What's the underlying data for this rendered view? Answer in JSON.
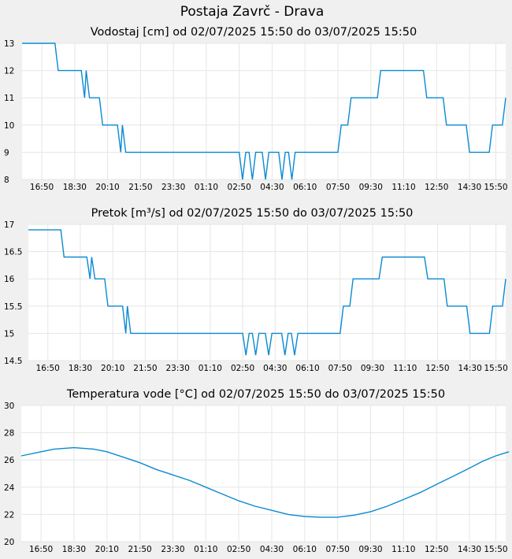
{
  "title": "Postaja Zavrč - Drava",
  "chart_data": [
    {
      "type": "line",
      "title": "Vodostaj [cm] od 02/07/2025 15:50 do 03/07/2025 15:50",
      "xlabel": "",
      "ylabel": "",
      "x_tick_labels": [
        "16:50",
        "18:30",
        "20:10",
        "21:50",
        "23:30",
        "01:10",
        "02:50",
        "04:30",
        "06:10",
        "07:50",
        "09:30",
        "11:10",
        "12:50",
        "14:30",
        "15:50"
      ],
      "y_tick_labels": [
        "8",
        "9",
        "10",
        "11",
        "12",
        "13"
      ],
      "ylim": [
        8,
        13
      ],
      "grid": true,
      "series": [
        {
          "points": [
            [
              "15:50",
              13
            ],
            [
              "16:50",
              13
            ],
            [
              "17:30",
              13
            ],
            [
              "17:40",
              12
            ],
            [
              "18:50",
              12
            ],
            [
              "19:00",
              11
            ],
            [
              "19:05",
              12
            ],
            [
              "19:15",
              11
            ],
            [
              "19:45",
              11
            ],
            [
              "19:55",
              10
            ],
            [
              "20:40",
              10
            ],
            [
              "20:50",
              9
            ],
            [
              "20:55",
              10
            ],
            [
              "21:05",
              9
            ],
            [
              "02:50",
              9
            ],
            [
              "03:00",
              8
            ],
            [
              "03:10",
              9
            ],
            [
              "03:20",
              9
            ],
            [
              "03:30",
              8
            ],
            [
              "03:40",
              9
            ],
            [
              "04:00",
              9
            ],
            [
              "04:10",
              8
            ],
            [
              "04:20",
              9
            ],
            [
              "04:50",
              9
            ],
            [
              "05:00",
              8
            ],
            [
              "05:10",
              9
            ],
            [
              "05:20",
              9
            ],
            [
              "05:30",
              8
            ],
            [
              "05:40",
              9
            ],
            [
              "07:50",
              9
            ],
            [
              "08:00",
              10
            ],
            [
              "08:20",
              10
            ],
            [
              "08:30",
              11
            ],
            [
              "09:50",
              11
            ],
            [
              "10:00",
              12
            ],
            [
              "12:10",
              12
            ],
            [
              "12:20",
              11
            ],
            [
              "13:10",
              11
            ],
            [
              "13:20",
              10
            ],
            [
              "14:20",
              10
            ],
            [
              "14:30",
              9
            ],
            [
              "15:30",
              9
            ],
            [
              "15:40",
              10
            ],
            [
              "16:10",
              10
            ],
            [
              "16:20",
              11
            ]
          ]
        }
      ]
    },
    {
      "type": "line",
      "title": "Pretok [m³/s] od 02/07/2025 15:50 do 03/07/2025 15:50",
      "xlabel": "",
      "ylabel": "",
      "x_tick_labels": [
        "16:50",
        "18:30",
        "20:10",
        "21:50",
        "23:30",
        "01:10",
        "02:50",
        "04:30",
        "06:10",
        "07:50",
        "09:30",
        "11:10",
        "12:50",
        "14:30",
        "15:50"
      ],
      "y_tick_labels": [
        "14.5",
        "15",
        "15.5",
        "16",
        "16.5",
        "17"
      ],
      "ylim": [
        14.5,
        17
      ],
      "grid": true,
      "series": [
        {
          "points": [
            [
              "15:50",
              16.9
            ],
            [
              "16:50",
              16.9
            ],
            [
              "17:30",
              16.9
            ],
            [
              "17:40",
              16.4
            ],
            [
              "18:50",
              16.4
            ],
            [
              "19:00",
              16.0
            ],
            [
              "19:05",
              16.4
            ],
            [
              "19:15",
              16.0
            ],
            [
              "19:45",
              16.0
            ],
            [
              "19:55",
              15.5
            ],
            [
              "20:40",
              15.5
            ],
            [
              "20:50",
              15.0
            ],
            [
              "20:55",
              15.5
            ],
            [
              "21:05",
              15.0
            ],
            [
              "02:50",
              15.0
            ],
            [
              "03:00",
              14.6
            ],
            [
              "03:10",
              15.0
            ],
            [
              "03:20",
              15.0
            ],
            [
              "03:30",
              14.6
            ],
            [
              "03:40",
              15.0
            ],
            [
              "04:00",
              15.0
            ],
            [
              "04:10",
              14.6
            ],
            [
              "04:20",
              15.0
            ],
            [
              "04:50",
              15.0
            ],
            [
              "05:00",
              14.6
            ],
            [
              "05:10",
              15.0
            ],
            [
              "05:20",
              15.0
            ],
            [
              "05:30",
              14.6
            ],
            [
              "05:40",
              15.0
            ],
            [
              "07:50",
              15.0
            ],
            [
              "08:00",
              15.5
            ],
            [
              "08:20",
              15.5
            ],
            [
              "08:30",
              16.0
            ],
            [
              "09:50",
              16.0
            ],
            [
              "10:00",
              16.4
            ],
            [
              "12:10",
              16.4
            ],
            [
              "12:20",
              16.0
            ],
            [
              "13:10",
              16.0
            ],
            [
              "13:20",
              15.5
            ],
            [
              "14:20",
              15.5
            ],
            [
              "14:30",
              15.0
            ],
            [
              "15:30",
              15.0
            ],
            [
              "15:40",
              15.5
            ],
            [
              "16:10",
              15.5
            ],
            [
              "16:20",
              16.0
            ]
          ]
        }
      ]
    },
    {
      "type": "line",
      "title": "Temperatura vode [°C] od 02/07/2025 15:50 do 03/07/2025 15:50",
      "xlabel": "",
      "ylabel": "",
      "x_tick_labels": [
        "16:50",
        "18:30",
        "20:10",
        "21:50",
        "23:30",
        "01:10",
        "02:50",
        "04:30",
        "06:10",
        "07:50",
        "09:30",
        "11:10",
        "12:50",
        "14:30",
        "15:50"
      ],
      "y_tick_labels": [
        "20",
        "22",
        "24",
        "26",
        "28",
        "30"
      ],
      "ylim": [
        20,
        30
      ],
      "grid": true,
      "series": [
        {
          "points": [
            [
              "15:50",
              26.3
            ],
            [
              "16:50",
              26.6
            ],
            [
              "17:30",
              26.8
            ],
            [
              "18:30",
              26.9
            ],
            [
              "19:30",
              26.8
            ],
            [
              "20:10",
              26.6
            ],
            [
              "21:00",
              26.2
            ],
            [
              "21:50",
              25.8
            ],
            [
              "22:40",
              25.3
            ],
            [
              "23:30",
              24.9
            ],
            [
              "00:20",
              24.5
            ],
            [
              "01:10",
              24.0
            ],
            [
              "02:00",
              23.5
            ],
            [
              "02:50",
              23.0
            ],
            [
              "03:40",
              22.6
            ],
            [
              "04:30",
              22.3
            ],
            [
              "05:20",
              22.0
            ],
            [
              "06:10",
              21.85
            ],
            [
              "07:00",
              21.8
            ],
            [
              "07:50",
              21.8
            ],
            [
              "08:40",
              21.95
            ],
            [
              "09:30",
              22.2
            ],
            [
              "10:20",
              22.6
            ],
            [
              "11:10",
              23.1
            ],
            [
              "12:00",
              23.6
            ],
            [
              "12:50",
              24.2
            ],
            [
              "13:40",
              24.8
            ],
            [
              "14:30",
              25.4
            ],
            [
              "15:10",
              25.9
            ],
            [
              "15:50",
              26.3
            ],
            [
              "16:30",
              26.6
            ]
          ]
        }
      ]
    }
  ]
}
